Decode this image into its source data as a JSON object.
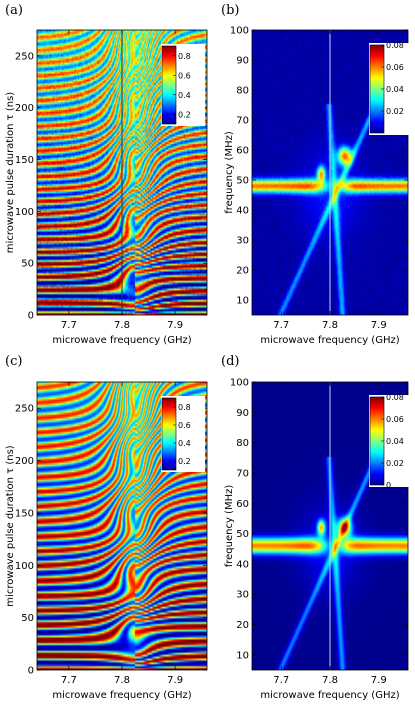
{
  "colormap": [
    "#00008f",
    "#0000ff",
    "#0080ff",
    "#00ffff",
    "#80ff80",
    "#ffff00",
    "#ff8000",
    "#ff0000",
    "#800000"
  ],
  "vline_colors": {
    "left": "#333333",
    "right": "#bcd4ff"
  },
  "chart_data": [
    {
      "panel_label": "(a)",
      "type": "heatmap",
      "xlabel": "microwave frequency (GHz)",
      "ylabel": "microwave pulse duration τ (ns)",
      "xlim": [
        7.64,
        7.96
      ],
      "ylim": [
        0,
        275
      ],
      "xticks": [
        "7.7",
        "7.8",
        "7.9"
      ],
      "yticks": [
        "0",
        "50",
        "100",
        "150",
        "200",
        "250"
      ],
      "colorbar": {
        "range": [
          0.1,
          0.9
        ],
        "ticks": [
          "0.2",
          "0.4",
          "0.6",
          "0.8"
        ]
      },
      "vline_x": 7.8,
      "description_values": {
        "oscillation_period_ns": 12,
        "background_level": 0.5
      }
    },
    {
      "panel_label": "(b)",
      "type": "heatmap",
      "xlabel": "microwave frequency (GHz)",
      "ylabel": "frequency (MHz)",
      "xlim": [
        7.64,
        7.96
      ],
      "ylim": [
        5,
        100
      ],
      "xticks": [
        "7.7",
        "7.8",
        "7.9"
      ],
      "yticks": [
        "10",
        "20",
        "30",
        "40",
        "50",
        "60",
        "70",
        "80",
        "90",
        "100"
      ],
      "colorbar": {
        "range": [
          0,
          0.08
        ],
        "ticks": [
          "0.02",
          "0.04",
          "0.06",
          "0.08"
        ]
      },
      "vline_x": 7.8,
      "description_values": {
        "main_band_MHz": 48,
        "upper_branch_MHz": 58,
        "lower_branch_MHz": 35
      }
    },
    {
      "panel_label": "(c)",
      "type": "heatmap",
      "xlabel": "microwave frequency (GHz)",
      "ylabel": "microwave pulse duration τ (ns)",
      "xlim": [
        7.64,
        7.96
      ],
      "ylim": [
        0,
        275
      ],
      "xticks": [
        "7.7",
        "7.8",
        "7.9"
      ],
      "yticks": [
        "0",
        "50",
        "100",
        "150",
        "200",
        "250"
      ],
      "colorbar": {
        "range": [
          0.1,
          0.9
        ],
        "ticks": [
          "0.2",
          "0.4",
          "0.6",
          "0.8"
        ]
      },
      "vline_x": null,
      "description_values": {
        "oscillation_period_ns": 14,
        "background_level": 0.5
      }
    },
    {
      "panel_label": "(d)",
      "type": "heatmap",
      "xlabel": "microwave frequency (GHz)",
      "ylabel": "frequency (MHz)",
      "xlim": [
        7.64,
        7.96
      ],
      "ylim": [
        5,
        100
      ],
      "xticks": [
        "7.7",
        "7.8",
        "7.9"
      ],
      "yticks": [
        "10",
        "20",
        "30",
        "40",
        "50",
        "60",
        "70",
        "80",
        "90",
        "100"
      ],
      "colorbar": {
        "range": [
          0,
          0.08
        ],
        "ticks": [
          "0",
          "0.02",
          "0.04",
          "0.06",
          "0.08"
        ]
      },
      "vline_x": 7.8,
      "description_values": {
        "main_band_MHz": 46,
        "upper_branch_MHz": 52,
        "lower_branch_MHz": 15
      }
    }
  ]
}
